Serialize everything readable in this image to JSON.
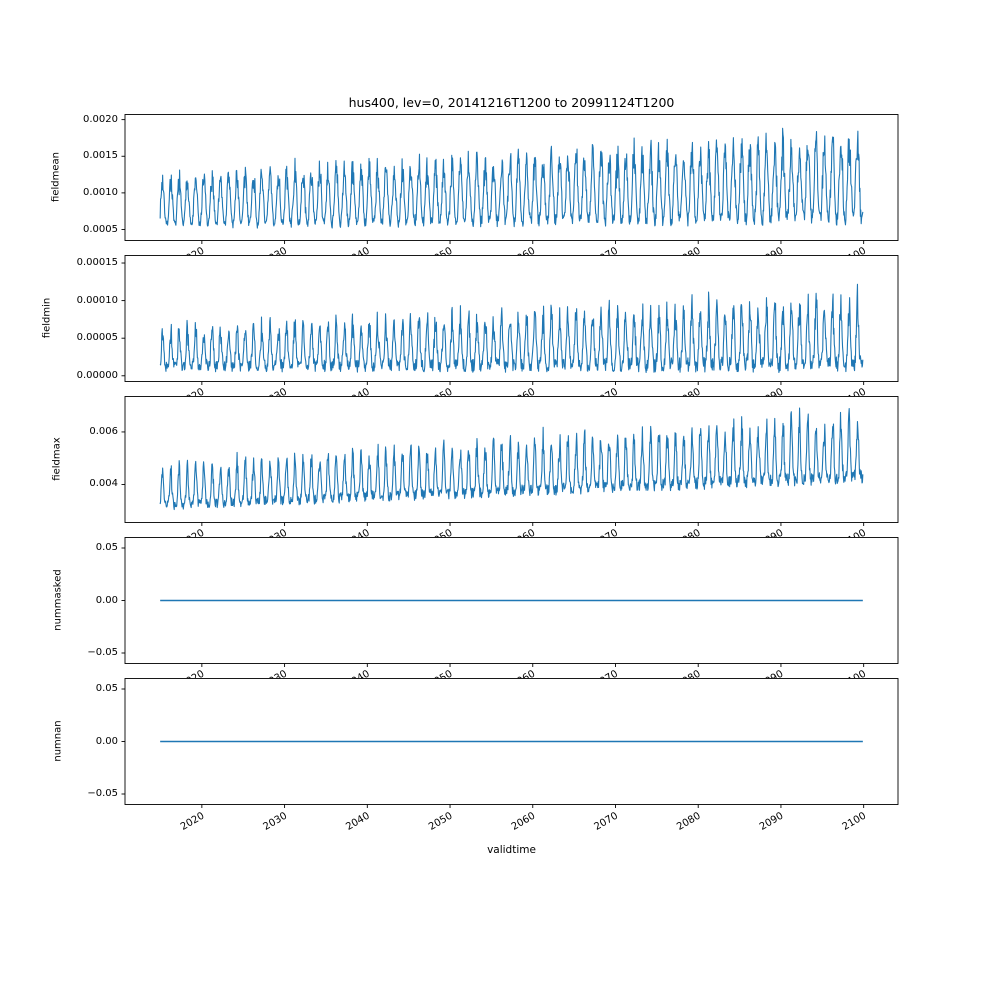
{
  "figure": {
    "title": "hus400, lev=0, 20141216T1200 to 20991124T1200",
    "xlabel": "validtime",
    "background": "#ffffff",
    "line_color": "#1f77b4"
  },
  "chart_data": [
    {
      "type": "line",
      "ylabel": "fieldmean",
      "x_start": 2014.96,
      "x_end": 2099.9,
      "xlim": [
        2010.71,
        2104.15
      ],
      "xticks": [
        2020,
        2030,
        2040,
        2050,
        2060,
        2070,
        2080,
        2090,
        2100
      ],
      "xtick_labels": [
        "2020",
        "2030",
        "2040",
        "2050",
        "2060",
        "2070",
        "2080",
        "2090",
        "2100"
      ],
      "ylim": [
        0.00035,
        0.00207
      ],
      "yticks": [
        0.0005,
        0.001,
        0.0015,
        0.002
      ],
      "ytick_labels": [
        "0.0005",
        "0.0010",
        "0.0015",
        "0.0020"
      ],
      "series": {
        "name": "fieldmean",
        "color": "#1f77b4",
        "kind": "seasonal",
        "points": 1700,
        "period_years": 1,
        "peak_sharpness": 1.25,
        "base_start": 0.00056,
        "base_end": 0.00066,
        "amp_start": 0.0006,
        "amp_end": 0.00102,
        "noise_start": 5e-05,
        "noise_end": 0.00011,
        "seed": 7,
        "clamp": [
          0.0004,
          0.00205
        ],
        "summary": {
          "min": 0.0004,
          "max": 0.002,
          "shape": "dense annual oscillation, peaks grow from ~0.0013 (2015) to ~0.0020 (2100), baseline ~0.0005"
        }
      }
    },
    {
      "type": "line",
      "ylabel": "fieldmin",
      "x_start": 2014.96,
      "x_end": 2099.9,
      "xlim": [
        2010.71,
        2104.15
      ],
      "xticks": [
        2020,
        2030,
        2040,
        2050,
        2060,
        2070,
        2080,
        2090,
        2100
      ],
      "xtick_labels": [
        "2020",
        "2030",
        "2040",
        "2050",
        "2060",
        "2070",
        "2080",
        "2090",
        "2100"
      ],
      "ylim": [
        -7.6e-06,
        0.00016
      ],
      "yticks": [
        0,
        5e-05,
        0.0001,
        0.00015
      ],
      "ytick_labels": [
        "0.00000",
        "0.00005",
        "0.00010",
        "0.00015"
      ],
      "series": {
        "name": "fieldmin",
        "color": "#1f77b4",
        "kind": "seasonal",
        "points": 1700,
        "period_years": 1,
        "peak_sharpness": 2.2,
        "base_start": 1.2e-05,
        "base_end": 1.5e-05,
        "amp_start": 4.5e-05,
        "amp_end": 8e-05,
        "noise_start": 7e-06,
        "noise_end": 1.1e-05,
        "seed": 13,
        "clamp": [
          1e-06,
          0.000152
        ],
        "summary": {
          "min": 0.0,
          "max": 0.00015,
          "shape": "narrow annual spikes from ~0.00001 baseline, spike tops grow from ~0.00007 to ~0.00012, max spike ~0.00015 near 2092"
        }
      }
    },
    {
      "type": "line",
      "ylabel": "fieldmax",
      "x_start": 2014.96,
      "x_end": 2099.9,
      "xlim": [
        2010.71,
        2104.15
      ],
      "xticks": [
        2020,
        2030,
        2040,
        2050,
        2060,
        2070,
        2080,
        2090,
        2100
      ],
      "xtick_labels": [
        "2020",
        "2030",
        "2040",
        "2050",
        "2060",
        "2070",
        "2080",
        "2090",
        "2100"
      ],
      "ylim": [
        0.00255,
        0.00735
      ],
      "yticks": [
        0.004,
        0.006
      ],
      "ytick_labels": [
        "0.004",
        "0.006"
      ],
      "series": {
        "name": "fieldmax",
        "color": "#1f77b4",
        "kind": "seasonal",
        "points": 1700,
        "period_years": 1,
        "peak_sharpness": 3,
        "base_start": 0.0032,
        "base_end": 0.0043,
        "amp_start": 0.0014,
        "amp_end": 0.0021,
        "noise_start": 0.00018,
        "noise_end": 0.00026,
        "seed": 21,
        "clamp": [
          0.0027,
          0.0071
        ],
        "summary": {
          "min": 0.0027,
          "max": 0.0071,
          "shape": "noisy baseline rising ~0.0032 to ~0.0045 with upward annual spikes reaching 0.006-0.007"
        }
      }
    },
    {
      "type": "line",
      "ylabel": "nummasked",
      "x_start": 2014.96,
      "x_end": 2099.9,
      "xlim": [
        2010.71,
        2104.15
      ],
      "xticks": [
        2020,
        2030,
        2040,
        2050,
        2060,
        2070,
        2080,
        2090,
        2100
      ],
      "xtick_labels": [
        "2020",
        "2030",
        "2040",
        "2050",
        "2060",
        "2070",
        "2080",
        "2090",
        "2100"
      ],
      "ylim": [
        -0.06,
        0.06
      ],
      "yticks": [
        -0.05,
        0,
        0.05
      ],
      "ytick_labels": [
        "−0.05",
        "0.00",
        "0.05"
      ],
      "series": {
        "name": "nummasked",
        "color": "#1f77b4",
        "kind": "constant",
        "value": 0,
        "summary": {
          "min": 0,
          "max": 0,
          "shape": "flat line at 0.00 for whole record"
        }
      }
    },
    {
      "type": "line",
      "ylabel": "numnan",
      "x_start": 2014.96,
      "x_end": 2099.9,
      "xlim": [
        2010.71,
        2104.15
      ],
      "xticks": [
        2020,
        2030,
        2040,
        2050,
        2060,
        2070,
        2080,
        2090,
        2100
      ],
      "xtick_labels": [
        "2020",
        "2030",
        "2040",
        "2050",
        "2060",
        "2070",
        "2080",
        "2090",
        "2100"
      ],
      "ylim": [
        -0.06,
        0.06
      ],
      "yticks": [
        -0.05,
        0,
        0.05
      ],
      "ytick_labels": [
        "−0.05",
        "0.00",
        "0.05"
      ],
      "series": {
        "name": "numnan",
        "color": "#1f77b4",
        "kind": "constant",
        "value": 0,
        "summary": {
          "min": 0,
          "max": 0,
          "shape": "flat line at 0.00 for whole record"
        }
      }
    }
  ]
}
